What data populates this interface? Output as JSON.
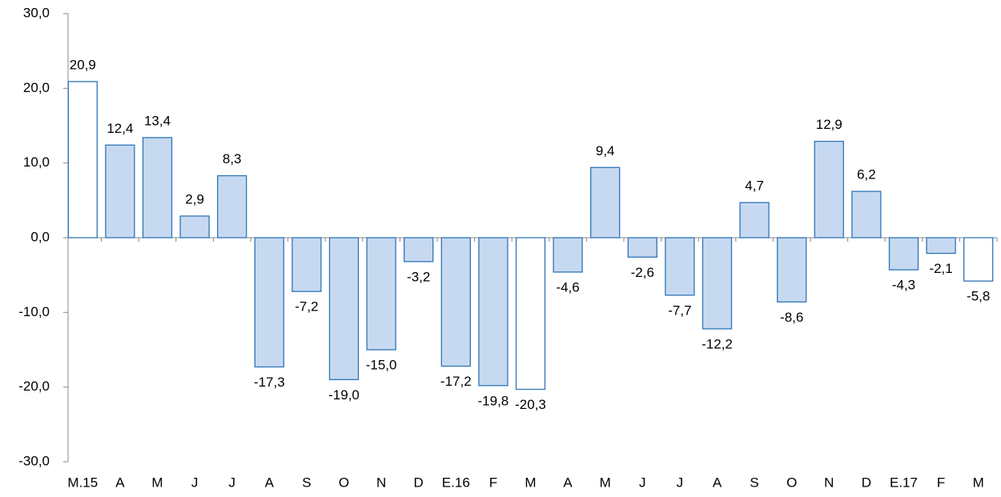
{
  "chart_data": {
    "type": "bar",
    "categories": [
      "M.15",
      "A",
      "M",
      "J",
      "J",
      "A",
      "S",
      "O",
      "N",
      "D",
      "E.16",
      "F",
      "M",
      "A",
      "M",
      "J",
      "J",
      "A",
      "S",
      "O",
      "N",
      "D",
      "E.17",
      "F",
      "M"
    ],
    "values": [
      20.9,
      12.4,
      13.4,
      2.9,
      8.3,
      -17.3,
      -7.2,
      -19.0,
      -15.0,
      -3.2,
      -17.2,
      -19.8,
      -20.3,
      -4.6,
      9.4,
      -2.6,
      -7.7,
      -12.2,
      4.7,
      -8.6,
      12.9,
      6.2,
      -4.3,
      -2.1,
      -5.8
    ],
    "value_labels": [
      "20,9",
      "12,4",
      "13,4",
      "2,9",
      "8,3",
      "-17,3",
      "-7,2",
      "-19,0",
      "-15,0",
      "-3,2",
      "-17,2",
      "-19,8",
      "-20,3",
      "-4,6",
      "9,4",
      "-2,6",
      "-7,7",
      "-12,2",
      "4,7",
      "-8,6",
      "12,9",
      "6,2",
      "-4,3",
      "-2,1",
      "-5,8"
    ],
    "colors": [
      "#ffffff",
      "#c6d9f1",
      "#c6d9f1",
      "#c6d9f1",
      "#c6d9f1",
      "#c6d9f1",
      "#c6d9f1",
      "#c6d9f1",
      "#c6d9f1",
      "#c6d9f1",
      "#c6d9f1",
      "#c6d9f1",
      "#ffffff",
      "#c6d9f1",
      "#c6d9f1",
      "#c6d9f1",
      "#c6d9f1",
      "#c6d9f1",
      "#c6d9f1",
      "#c6d9f1",
      "#c6d9f1",
      "#c6d9f1",
      "#c6d9f1",
      "#c6d9f1",
      "#ffffff"
    ],
    "edge_color": "#2e75b6",
    "ylim": [
      -30,
      30
    ],
    "yticks": [
      {
        "value": -30,
        "label": "-30,0"
      },
      {
        "value": -20,
        "label": "-20,0"
      },
      {
        "value": -10,
        "label": "-10,0"
      },
      {
        "value": 0,
        "label": "0,0"
      },
      {
        "value": 10,
        "label": "10,0"
      },
      {
        "value": 20,
        "label": "20,0"
      },
      {
        "value": 30,
        "label": "30,0"
      }
    ],
    "grid": false
  }
}
